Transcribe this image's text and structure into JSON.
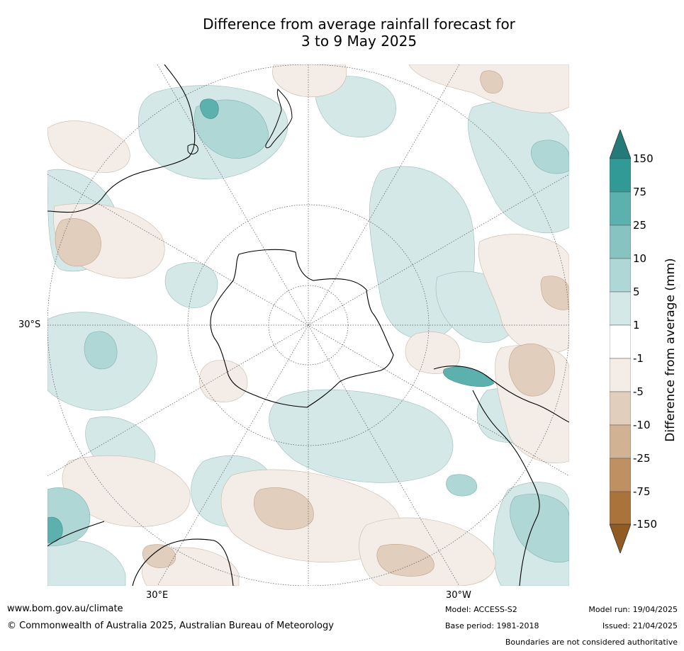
{
  "title": {
    "line1": "Difference from average rainfall forecast for",
    "line2": "3 to 9 May 2025"
  },
  "map": {
    "projection": "south-polar-stereographic",
    "lat_labels": [
      "30°S"
    ],
    "lon_labels": [
      "30°E",
      "30°W"
    ],
    "continents_outlined": [
      "Antarctica",
      "Australia",
      "New Zealand",
      "South America",
      "Africa"
    ]
  },
  "colorbar": {
    "title": "Difference from average (mm)",
    "ticks": [
      "150",
      "75",
      "25",
      "10",
      "5",
      "1",
      "-1",
      "-5",
      "-10",
      "-25",
      "-75",
      "-150"
    ],
    "colors": {
      "gt150": "#247a78",
      "75_150": "#329a96",
      "25_75": "#5cb0ad",
      "10_25": "#86c3c1",
      "5_10": "#afd7d6",
      "1_5": "#d4e8e7",
      "m1_1": "#ffffff",
      "m5_m1": "#f4ede7",
      "m10_m5": "#e2cebd",
      "m25_m10": "#d1b293",
      "m75_m25": "#bf9061",
      "m150_m75": "#ab733c",
      "lt_m150": "#925b24"
    }
  },
  "footer": {
    "url": "www.bom.gov.au/climate",
    "copyright": "© Commonwealth of Australia 2025, Australian Bureau of Meteorology",
    "model": "Model: ACCESS-S2",
    "base_period": "Base period: 1981-2018",
    "model_run": "Model run: 19/04/2025",
    "issued": "Issued: 21/04/2025",
    "disclaimer": "Boundaries are not considered authoritative"
  }
}
